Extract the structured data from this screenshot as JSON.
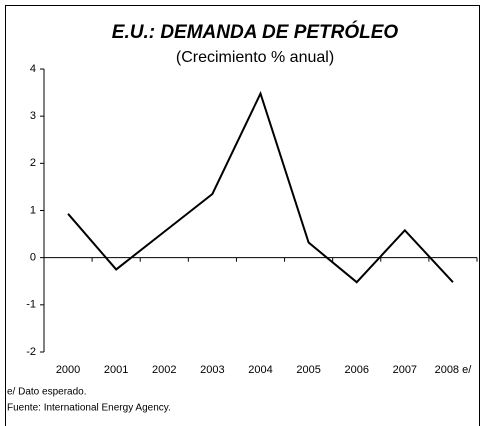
{
  "chart_data": {
    "type": "line",
    "title": "E.U.: DEMANDA DE PETRÓLEO",
    "subtitle": "(Crecimiento % anual)",
    "categories": [
      "2000",
      "2001",
      "2002",
      "2003",
      "2004",
      "2005",
      "2006",
      "2007",
      "2008 e/"
    ],
    "values": [
      0.93,
      -0.25,
      0.55,
      1.35,
      3.48,
      0.32,
      -0.52,
      0.58,
      -0.52
    ],
    "color": "#000000",
    "ylim": [
      -2,
      4
    ],
    "yticks": [
      -2,
      -1,
      0,
      1,
      2,
      3,
      4
    ],
    "notes": [
      "e/ Dato esperado.",
      "Fuente: International Energy Agency."
    ]
  }
}
